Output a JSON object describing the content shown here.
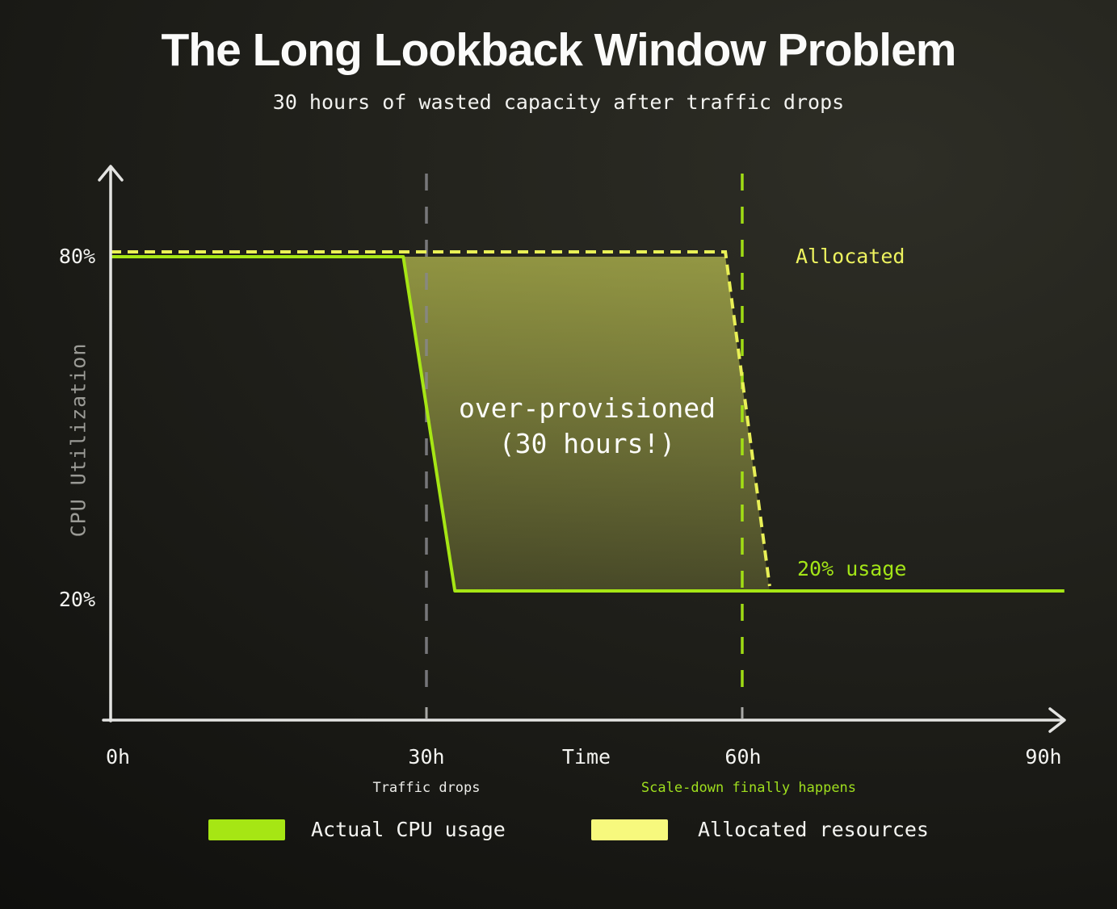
{
  "chart_data": {
    "type": "line",
    "title": "The Long Lookback Window Problem",
    "subtitle": "30 hours of wasted capacity after traffic drops",
    "xlabel": "Time",
    "ylabel": "CPU Utilization",
    "x_unit": "hours",
    "xlim": [
      0,
      90
    ],
    "ylim": [
      0,
      100
    ],
    "grid": false,
    "x_ticks": [
      {
        "value": 0,
        "label": "0h"
      },
      {
        "value": 30,
        "label": "30h"
      },
      {
        "value": 60,
        "label": "60h"
      },
      {
        "value": 90,
        "label": "90h"
      }
    ],
    "axis_tick_marks_at": [
      30,
      60
    ],
    "y_ticks": [
      {
        "value": 80,
        "label": "80%"
      },
      {
        "value": 20,
        "label": "20%"
      }
    ],
    "series": [
      {
        "name": "Actual CPU usage",
        "color": "#a6e614",
        "style": "solid",
        "points": [
          [
            0,
            80
          ],
          [
            27.8,
            80
          ],
          [
            32.7,
            20
          ],
          [
            90.6,
            20
          ]
        ]
      },
      {
        "name": "Allocated resources",
        "color": "#e9f056",
        "style": "dashed",
        "points": [
          [
            0,
            80
          ],
          [
            58.4,
            80
          ],
          [
            62.6,
            20
          ]
        ]
      }
    ],
    "region": {
      "label_line1": "over-provisioned",
      "label_line2": "(30 hours!)",
      "fill": "#e9f05f",
      "points": [
        [
          27.8,
          80
        ],
        [
          58.4,
          80
        ],
        [
          62.6,
          20
        ],
        [
          32.7,
          20
        ]
      ]
    },
    "markers": [
      {
        "x": 30,
        "caption": "Traffic drops",
        "line_color": "#87878c",
        "caption_color": "#ededea"
      },
      {
        "x": 60,
        "caption": "Scale-down finally happens",
        "line_color": "#a6e614",
        "caption_color": "#9fdf1e"
      }
    ],
    "annotations": [
      {
        "text": "Allocated",
        "color": "#edf25f",
        "at_percent": 80
      },
      {
        "text": "20% usage",
        "color": "#a3e517",
        "at_percent": 20
      }
    ]
  },
  "legend": {
    "items": [
      {
        "label": "Actual CPU usage",
        "color": "#a6e614"
      },
      {
        "label": "Allocated resources",
        "color": "#f7f97d"
      }
    ]
  },
  "colors": {
    "background_dark": "#0d0d0b",
    "background_light": "#2e2e26",
    "axis": "#e4e4e2",
    "text_primary": "#f4f4f1",
    "text_muted": "#9b9b96",
    "accent_green": "#a6e614",
    "accent_yellow": "#e9f056"
  }
}
